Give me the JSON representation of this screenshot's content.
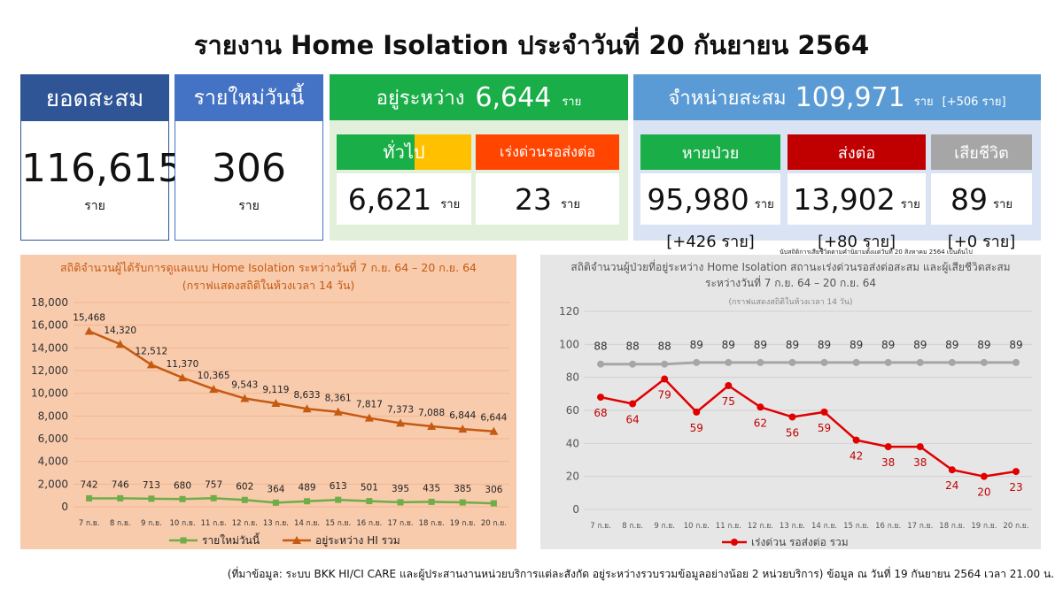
{
  "title": "รายงาน Home Isolation ประจำวันที่ 20 กันยายน 2564",
  "colors": {
    "navy": "#2f5597",
    "blue": "#4472c4",
    "green": "#1aae48",
    "lightblue": "#5b9bd5",
    "red": "#c00000",
    "gray": "#a6a6a6",
    "yellow": "#ffc000",
    "orange_red": "#ff4500",
    "orange_panel": "#f8cbad",
    "gray_panel": "#e7e6e6"
  },
  "cards": {
    "cumulative": {
      "label": "ยอดสะสม",
      "value": "116,615",
      "unit": "ราย"
    },
    "new_today": {
      "label": "รายใหม่วันนี้",
      "value": "306",
      "unit": "ราย"
    },
    "ongoing": {
      "label": "อยู่ระหว่าง",
      "value": "6,644",
      "unit": "ราย",
      "general": {
        "label": "ทั่วไป",
        "value": "6,621",
        "unit": "ราย"
      },
      "urgent": {
        "label": "เร่งด่วนรอส่งต่อ",
        "value": "23",
        "unit": "ราย"
      }
    },
    "discharged": {
      "label": "จำหน่ายสะสม",
      "value": "109,971",
      "unit": "ราย",
      "extra": "[+506 ราย]",
      "recovered": {
        "label": "หายป่วย",
        "value": "95,980",
        "unit": "ราย",
        "delta": "[+426 ราย]"
      },
      "referred": {
        "label": "ส่งต่อ",
        "value": "13,902",
        "unit": "ราย",
        "delta": "[+80 ราย]"
      },
      "deceased": {
        "label": "เสียชีวิต",
        "value": "89",
        "unit": "ราย",
        "delta": "[+0 ราย]"
      }
    }
  },
  "death_note": "นับสถิติการเสียชีวิตตามคำนิยามตั้งแต่วันที่ 20 สิงหาคม 2564 เป็นต้นไป",
  "chart_data": [
    {
      "type": "line",
      "title": "สถิติจำนวนผู้ได้รับการดูแลแบบ Home Isolation ระหว่างวันที่ 7 ก.ย. 64 – 20 ก.ย. 64",
      "subtitle": "(กราฟแสดงสถิติในห้วงเวลา 14 วัน)",
      "categories": [
        "7 ก.ย.",
        "8 ก.ย.",
        "9 ก.ย.",
        "10 ก.ย.",
        "11 ก.ย.",
        "12 ก.ย.",
        "13 ก.ย.",
        "14 ก.ย.",
        "15 ก.ย.",
        "16 ก.ย.",
        "17 ก.ย.",
        "18 ก.ย.",
        "19 ก.ย.",
        "20 ก.ย."
      ],
      "yticks": [
        "18,000",
        "16,000",
        "14,000",
        "12,000",
        "10,000",
        "8,000",
        "6,000",
        "4,000",
        "2,000",
        "0"
      ],
      "ylim": [
        0,
        18000
      ],
      "series": [
        {
          "name": "รายใหม่วันนี้",
          "color": "#70ad47",
          "marker": "square",
          "values": [
            742,
            746,
            713,
            680,
            757,
            602,
            364,
            489,
            613,
            501,
            395,
            435,
            385,
            306
          ],
          "labels": [
            "742",
            "746",
            "713",
            "680",
            "757",
            "602",
            "364",
            "489",
            "613",
            "501",
            "395",
            "435",
            "385",
            "306"
          ]
        },
        {
          "name": "อยู่ระหว่าง HI รวม",
          "color": "#c55a11",
          "marker": "triangle",
          "values": [
            15468,
            14320,
            12512,
            11370,
            10365,
            9543,
            9119,
            8633,
            8361,
            7817,
            7373,
            7088,
            6844,
            6644
          ],
          "labels": [
            "15,468",
            "14,320",
            "12,512",
            "11,370",
            "10,365",
            "9,543",
            "9,119",
            "8,633",
            "8,361",
            "7,817",
            "7,373",
            "7,088",
            "6,844",
            "6,644"
          ]
        }
      ],
      "legend": "bottom",
      "grid": true
    },
    {
      "type": "line",
      "title": "สถิติจำนวนผู้ป่วยที่อยู่ระหว่าง Home Isolation สถานะเร่งด่วนรอส่งต่อสะสม และผู้เสียชีวิตสะสม",
      "title2": "ระหว่างวันที่ 7 ก.ย. 64 – 20 ก.ย. 64",
      "subtitle": "(กราฟแสดงสถิติในห้วงเวลา 14 วัน)",
      "categories": [
        "7 ก.ย.",
        "8 ก.ย.",
        "9 ก.ย.",
        "10 ก.ย.",
        "11 ก.ย.",
        "12 ก.ย.",
        "13 ก.ย.",
        "14 ก.ย.",
        "15 ก.ย.",
        "16 ก.ย.",
        "17 ก.ย.",
        "18 ก.ย.",
        "19 ก.ย.",
        "20 ก.ย."
      ],
      "yticks": [
        "120",
        "100",
        "80",
        "60",
        "40",
        "20",
        "0"
      ],
      "ylim": [
        0,
        120
      ],
      "series": [
        {
          "name": "เร่งด่วน รอส่งต่อ รวม",
          "color": "#e00000",
          "values": [
            68,
            64,
            79,
            59,
            75,
            62,
            56,
            59,
            42,
            38,
            38,
            24,
            20,
            23
          ]
        },
        {
          "color": "#a6a6a6",
          "values": [
            88,
            88,
            88,
            89,
            89,
            89,
            89,
            89,
            89,
            89,
            89,
            89,
            89,
            89
          ]
        }
      ],
      "legend": "bottom",
      "grid": true
    }
  ],
  "footer": "(ที่มาข้อมูล: ระบบ BKK HI/CI CARE และผู้ประสานงานหน่วยบริการแต่ละสังกัด อยู่ระหว่างรวบรวมข้อมูลอย่างน้อย 2 หน่วยบริการ) ข้อมูล ณ วันที่ 19 กันยายน 2564 เวลา 21.00 น."
}
